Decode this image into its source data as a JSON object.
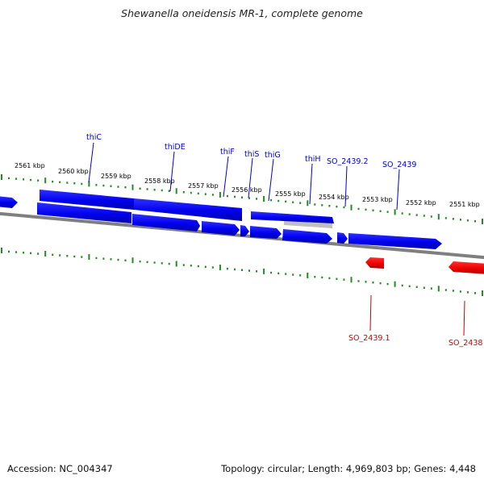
{
  "title": "Shewanella oneidensis MR-1, complete genome",
  "accession": "Accession: NC_004347",
  "summary": "Topology: circular; Length: 4,969,803 bp; Genes: 4,448",
  "ruler": {
    "ticks": [
      "2561 kbp",
      "2560 kbp",
      "2559 kbp",
      "2558 kbp",
      "2557 kbp",
      "2556 kbp",
      "2555 kbp",
      "2554 kbp",
      "2553 kbp",
      "2552 kbp",
      "2551 kbp"
    ]
  },
  "genes": {
    "forward_labels": [
      "thiC",
      "thiDE",
      "thiF",
      "thiS",
      "thiG",
      "thiH",
      "SO_2439.2",
      "SO_2439"
    ],
    "reverse_labels": [
      "SO_2439.1",
      "SO_2438"
    ]
  },
  "colors": {
    "forward": "#0000ee",
    "reverse": "#ee0000",
    "ticks": "#228b22",
    "backbone": "#7f7f7f",
    "pseudo": "#c0c0c0"
  }
}
